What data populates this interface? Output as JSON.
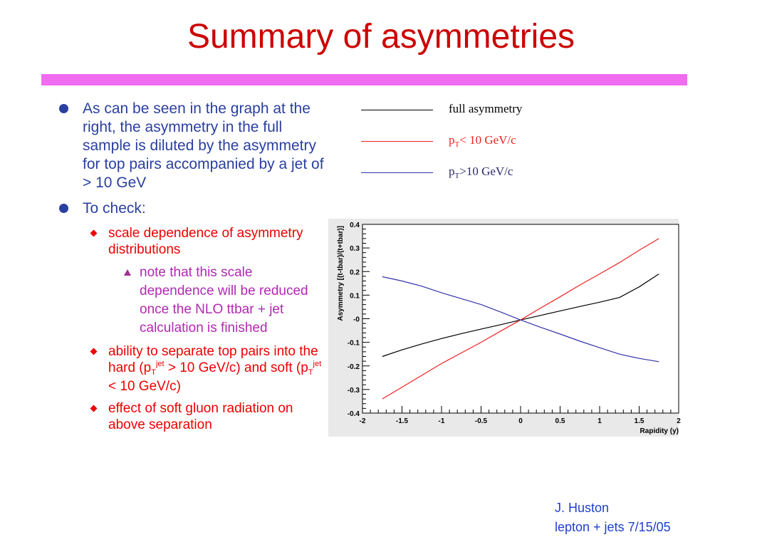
{
  "slide": {
    "title": "Summary of asymmetries",
    "footer": {
      "line1": "J. Huston",
      "line2": "lepton + jets 7/15/05"
    },
    "colors": {
      "title": "#cc0000",
      "rule": "#f06cf0",
      "bullet": "#2a3fa0",
      "sub_bullet": "#ee0000",
      "subsub_bullet": "#b02ab0"
    }
  },
  "bullets": {
    "b1": "As can be seen in the graph at the right, the asymmetry in the full sample is diluted by the asymmetry for top pairs accompanied by a jet of > 10 GeV",
    "b2": "To check:",
    "s1": "scale dependence of asymmetry distributions",
    "ss1": "note that this scale dependence will be reduced once the NLO ttbar + jet calculation is finished",
    "s2_pre": "ability to separate top pairs into the hard (p",
    "s2_sub1": "T",
    "s2_sup1": "jet",
    "s2_mid": " > 10 GeV/c) and soft (p",
    "s2_sub2": "T",
    "s2_sup2": "jet",
    "s2_post": " < 10 GeV/c)",
    "s3": "effect of soft gluon radiation on above separation"
  },
  "legend": {
    "full": {
      "text": "full asymmetry",
      "color": "#000000"
    },
    "low": {
      "pre": "p",
      "sub": "T",
      "post": "< 10 GeV/c",
      "color": "#ee2222"
    },
    "high": {
      "pre": "p",
      "sub": "T",
      "post": ">10 GeV/c",
      "color": "#3333aa"
    }
  },
  "chart_data": {
    "type": "line",
    "xlabel": "Rapidity (y)",
    "ylabel": "Asymmetry [(t-tbar)/(t+tbar)]",
    "xlim": [
      -2,
      2
    ],
    "ylim": [
      -0.4,
      0.4
    ],
    "x_ticks": [
      "-2",
      "-1.5",
      "-1",
      "-0.5",
      "0",
      "0.5",
      "1",
      "1.5",
      "2"
    ],
    "y_ticks": [
      "0.4",
      "0.3",
      "0.2",
      "0.1",
      "-0",
      "-0.1",
      "-0.2",
      "-0.3",
      "-0.4"
    ],
    "grid": false,
    "x": [
      -1.75,
      -1.5,
      -1.25,
      -1.0,
      -0.75,
      -0.5,
      -0.25,
      0.0,
      0.25,
      0.5,
      0.75,
      1.0,
      1.25,
      1.5,
      1.75
    ],
    "series": [
      {
        "name": "full asymmetry",
        "color": "#000000",
        "values": [
          -0.16,
          -0.132,
          -0.107,
          -0.084,
          -0.063,
          -0.044,
          -0.025,
          -0.005,
          0.014,
          0.033,
          0.052,
          0.07,
          0.09,
          0.135,
          0.19
        ]
      },
      {
        "name": "pT< 10 GeV/c",
        "color": "#ee2222",
        "values": [
          -0.34,
          -0.29,
          -0.24,
          -0.19,
          -0.145,
          -0.1,
          -0.052,
          -0.005,
          0.045,
          0.093,
          0.143,
          0.19,
          0.238,
          0.29,
          0.34
        ]
      },
      {
        "name": "pT>10 GeV/c",
        "color": "#3333aa",
        "values": [
          0.178,
          0.16,
          0.138,
          0.11,
          0.085,
          0.06,
          0.028,
          -0.005,
          -0.036,
          -0.065,
          -0.095,
          -0.123,
          -0.15,
          -0.168,
          -0.182
        ]
      }
    ]
  }
}
